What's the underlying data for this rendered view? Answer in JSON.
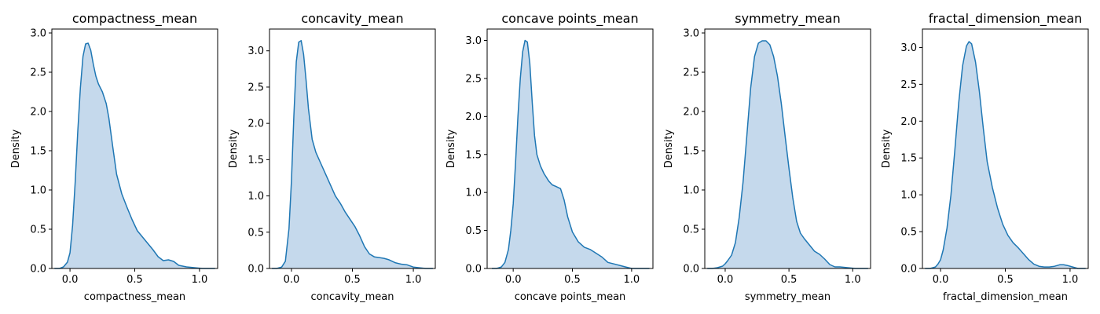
{
  "chart_data": [
    {
      "type": "area",
      "title": "compactness_mean",
      "xlabel": "compactness_mean",
      "ylabel": "Density",
      "xlim": [
        -0.14,
        1.14
      ],
      "ylim": [
        0,
        3.05
      ],
      "xticks": [
        0.0,
        0.5,
        1.0
      ],
      "yticks": [
        0.0,
        0.5,
        1.0,
        1.5,
        2.0,
        2.5,
        3.0
      ],
      "series": [
        {
          "x": [
            -0.12,
            -0.08,
            -0.05,
            -0.02,
            0.0,
            0.02,
            0.04,
            0.06,
            0.08,
            0.1,
            0.12,
            0.14,
            0.16,
            0.18,
            0.2,
            0.22,
            0.25,
            0.28,
            0.3,
            0.33,
            0.36,
            0.4,
            0.44,
            0.48,
            0.52,
            0.56,
            0.6,
            0.64,
            0.68,
            0.72,
            0.76,
            0.8,
            0.84,
            0.9,
            0.96,
            1.02,
            1.08,
            1.12
          ],
          "y": [
            0.0,
            0.0,
            0.02,
            0.08,
            0.2,
            0.55,
            1.1,
            1.75,
            2.3,
            2.7,
            2.86,
            2.87,
            2.78,
            2.6,
            2.45,
            2.35,
            2.25,
            2.1,
            1.92,
            1.55,
            1.2,
            0.95,
            0.78,
            0.62,
            0.48,
            0.4,
            0.32,
            0.24,
            0.15,
            0.1,
            0.11,
            0.09,
            0.04,
            0.02,
            0.01,
            0.0,
            0.0,
            0.0
          ]
        }
      ]
    },
    {
      "type": "area",
      "title": "concavity_mean",
      "xlabel": "concavity_mean",
      "ylabel": "Density",
      "xlim": [
        -0.18,
        1.18
      ],
      "ylim": [
        0,
        3.3
      ],
      "xticks": [
        0.0,
        0.5,
        1.0
      ],
      "yticks": [
        0.0,
        0.5,
        1.0,
        1.5,
        2.0,
        2.5,
        3.0
      ],
      "series": [
        {
          "x": [
            -0.16,
            -0.12,
            -0.08,
            -0.05,
            -0.02,
            0.0,
            0.02,
            0.04,
            0.06,
            0.08,
            0.1,
            0.12,
            0.14,
            0.17,
            0.2,
            0.24,
            0.28,
            0.32,
            0.36,
            0.4,
            0.44,
            0.48,
            0.52,
            0.56,
            0.6,
            0.64,
            0.68,
            0.72,
            0.76,
            0.8,
            0.85,
            0.9,
            0.95,
            1.0,
            1.05,
            1.1,
            1.16
          ],
          "y": [
            0.0,
            0.0,
            0.02,
            0.1,
            0.55,
            1.2,
            2.1,
            2.85,
            3.12,
            3.14,
            2.95,
            2.6,
            2.2,
            1.78,
            1.6,
            1.45,
            1.3,
            1.15,
            1.0,
            0.9,
            0.78,
            0.68,
            0.58,
            0.45,
            0.3,
            0.2,
            0.16,
            0.15,
            0.14,
            0.12,
            0.08,
            0.06,
            0.05,
            0.02,
            0.01,
            0.0,
            0.0
          ]
        }
      ]
    },
    {
      "type": "area",
      "title": "concave points_mean",
      "xlabel": "concave points_mean",
      "ylabel": "Density",
      "xlim": [
        -0.22,
        1.18
      ],
      "ylim": [
        0,
        3.15
      ],
      "xticks": [
        0.0,
        0.5,
        1.0
      ],
      "yticks": [
        0.0,
        0.5,
        1.0,
        1.5,
        2.0,
        2.5,
        3.0
      ],
      "series": [
        {
          "x": [
            -0.18,
            -0.14,
            -0.1,
            -0.07,
            -0.04,
            -0.02,
            0.0,
            0.02,
            0.04,
            0.06,
            0.08,
            0.1,
            0.12,
            0.14,
            0.16,
            0.18,
            0.2,
            0.23,
            0.26,
            0.3,
            0.33,
            0.36,
            0.4,
            0.43,
            0.46,
            0.5,
            0.55,
            0.6,
            0.65,
            0.7,
            0.75,
            0.8,
            0.85,
            0.9,
            0.95,
            1.0,
            1.05,
            1.1,
            1.15
          ],
          "y": [
            0.0,
            0.0,
            0.02,
            0.08,
            0.25,
            0.5,
            0.85,
            1.4,
            2.0,
            2.5,
            2.85,
            3.0,
            2.98,
            2.7,
            2.2,
            1.75,
            1.5,
            1.35,
            1.25,
            1.15,
            1.1,
            1.08,
            1.05,
            0.9,
            0.68,
            0.48,
            0.35,
            0.28,
            0.25,
            0.2,
            0.15,
            0.08,
            0.06,
            0.04,
            0.02,
            0.0,
            0.0,
            0.0,
            0.0
          ]
        }
      ]
    },
    {
      "type": "area",
      "title": "symmetry_mean",
      "xlabel": "symmetry_mean",
      "ylabel": "Density",
      "xlim": [
        -0.16,
        1.14
      ],
      "ylim": [
        0,
        3.05
      ],
      "xticks": [
        0.0,
        0.5,
        1.0
      ],
      "yticks": [
        0.0,
        0.5,
        1.0,
        1.5,
        2.0,
        2.5,
        3.0
      ],
      "series": [
        {
          "x": [
            -0.14,
            -0.1,
            -0.06,
            -0.02,
            0.0,
            0.02,
            0.05,
            0.08,
            0.11,
            0.14,
            0.17,
            0.2,
            0.23,
            0.26,
            0.29,
            0.32,
            0.35,
            0.38,
            0.41,
            0.44,
            0.47,
            0.5,
            0.53,
            0.56,
            0.59,
            0.62,
            0.66,
            0.7,
            0.74,
            0.78,
            0.82,
            0.86,
            0.9,
            0.96,
            1.02,
            1.08,
            1.12
          ],
          "y": [
            0.0,
            0.0,
            0.01,
            0.03,
            0.06,
            0.1,
            0.17,
            0.33,
            0.65,
            1.1,
            1.7,
            2.3,
            2.7,
            2.87,
            2.9,
            2.9,
            2.85,
            2.7,
            2.45,
            2.1,
            1.68,
            1.28,
            0.9,
            0.6,
            0.45,
            0.38,
            0.3,
            0.22,
            0.18,
            0.12,
            0.05,
            0.02,
            0.02,
            0.01,
            0.0,
            0.0,
            0.0
          ]
        }
      ]
    },
    {
      "type": "area",
      "title": "fractal_dimension_mean",
      "xlabel": "fractal_dimension_mean",
      "ylabel": "Density",
      "xlim": [
        -0.14,
        1.14
      ],
      "ylim": [
        0,
        3.25
      ],
      "xticks": [
        0.0,
        0.5,
        1.0
      ],
      "yticks": [
        0.0,
        0.5,
        1.0,
        1.5,
        2.0,
        2.5,
        3.0
      ],
      "series": [
        {
          "x": [
            -0.12,
            -0.08,
            -0.04,
            -0.02,
            0.0,
            0.02,
            0.05,
            0.08,
            0.11,
            0.14,
            0.17,
            0.2,
            0.22,
            0.24,
            0.27,
            0.3,
            0.33,
            0.36,
            0.4,
            0.44,
            0.48,
            0.52,
            0.56,
            0.6,
            0.64,
            0.68,
            0.72,
            0.76,
            0.8,
            0.84,
            0.88,
            0.92,
            0.95,
            0.98,
            1.02,
            1.06,
            1.1,
            1.12
          ],
          "y": [
            0.0,
            0.0,
            0.02,
            0.06,
            0.12,
            0.25,
            0.55,
            1.0,
            1.6,
            2.25,
            2.75,
            3.02,
            3.08,
            3.05,
            2.8,
            2.4,
            1.9,
            1.45,
            1.1,
            0.82,
            0.6,
            0.45,
            0.35,
            0.28,
            0.2,
            0.12,
            0.06,
            0.03,
            0.02,
            0.02,
            0.03,
            0.05,
            0.05,
            0.04,
            0.02,
            0.0,
            0.0,
            0.0
          ]
        }
      ]
    }
  ],
  "colors": {
    "line": "#1f77b4",
    "fill": "#c5d9ec",
    "axes": "#000000"
  }
}
